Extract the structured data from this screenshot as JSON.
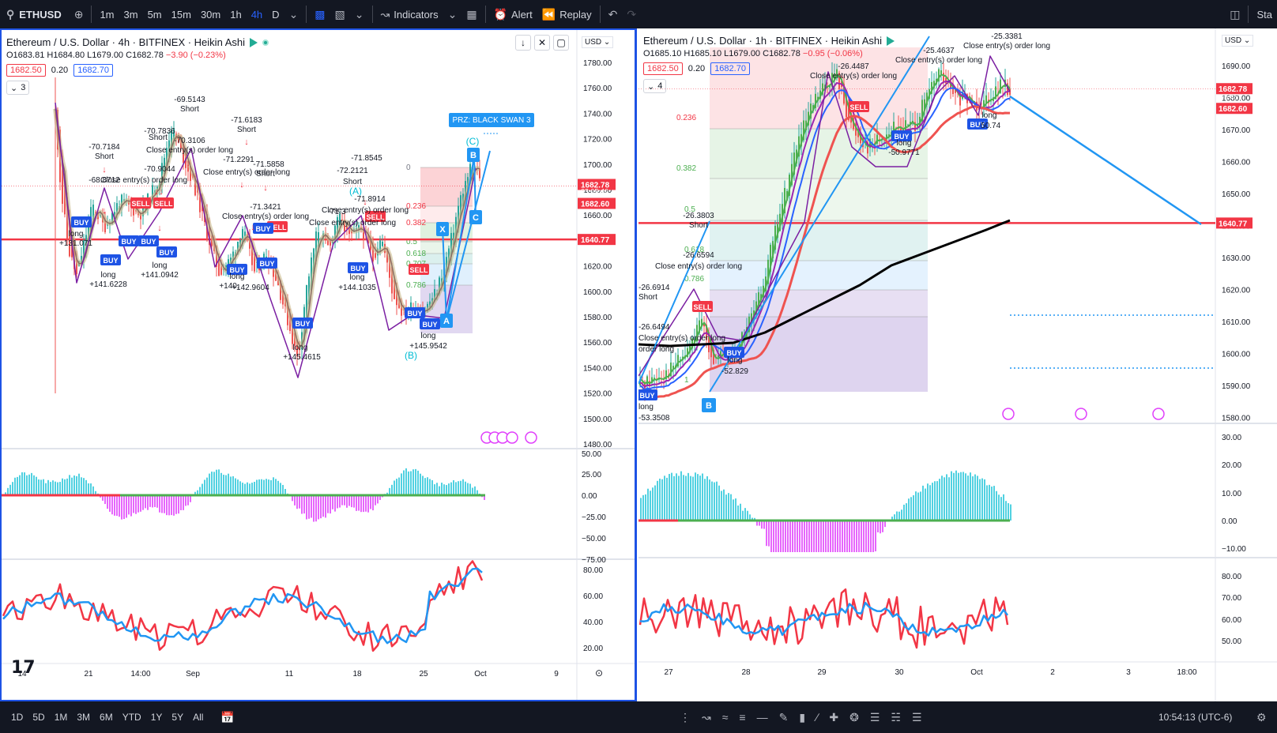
{
  "toolbar": {
    "symbol": "ETHUSD",
    "timeframes": [
      "1m",
      "3m",
      "5m",
      "15m",
      "30m",
      "1h",
      "4h",
      "D"
    ],
    "active_timeframe": "4h",
    "indicators_label": "Indicators",
    "alert_label": "Alert",
    "replay_label": "Replay",
    "right_label": "Sta"
  },
  "left": {
    "title": "Ethereum / U.S. Dollar · 4h · BITFINEX · Heikin Ashi",
    "ohlc": {
      "o": "O1683.81",
      "h": "H1684.80",
      "l": "L1679.00",
      "c": "C1682.78",
      "chg": "−3.90 (−0.23%)"
    },
    "bid": "1682.50",
    "spread": "0.20",
    "ask": "1682.70",
    "collapse_count": "3",
    "currency": "USD",
    "price_ticks": [
      "1780.00",
      "1760.00",
      "1740.00",
      "1720.00",
      "1700.00",
      "1680.00",
      "1660.00",
      "1640.00",
      "1620.00",
      "1600.00",
      "1580.00",
      "1560.00",
      "1540.00",
      "1520.00",
      "1500.00",
      "1480.00"
    ],
    "price_label_current": "1682.78",
    "price_label_countdown": "03:05:46",
    "price_label_sub": "1682.60",
    "price_label_hline": "1640.77",
    "osc1_ticks": [
      "50.00",
      "25.00",
      "0.00",
      "−25.00",
      "−50.00",
      "−75.00"
    ],
    "osc2_ticks": [
      "80.00",
      "60.00",
      "40.00",
      "20.00"
    ],
    "time_ticks": [
      "14",
      "21",
      "14:00",
      "Sep",
      "11",
      "18",
      "25",
      "Oct",
      "9"
    ],
    "prz_label": "PRZ: BLACK SWAN 3",
    "wave_labels": [
      "(A)",
      "(B)",
      "(C)"
    ],
    "pattern_points": [
      "X",
      "A",
      "B",
      "C"
    ],
    "fib_labels": [
      "0",
      "0.236",
      "0.382",
      "0.5",
      "0.618",
      "0.707",
      "0.786"
    ],
    "annotations": [
      "-69.5143",
      "Short",
      "-70.7836",
      "Short",
      "-70.3106",
      "Close entry(s) order long",
      "-70.7184",
      "Short",
      "-70.9044",
      "-68.8712",
      "Close entry(s) order long",
      "-71.6183",
      "Short",
      "-71.2291",
      "-71.5858",
      "Close entry(s) order long",
      "Short",
      "-71.3421",
      "Close entry(s) order long",
      "-71.8545",
      "-72.2121",
      "Short",
      "-71.8914",
      "Close entry(s) order long",
      "-71.3",
      "Close entry(s) order long",
      "long",
      "+131.071",
      "long",
      "+141.6228",
      "long",
      "+141.0942",
      "long",
      "+140.",
      "+142.9604",
      "long",
      "+145.4615",
      "long",
      "+144.1035",
      "long",
      "+145.9542"
    ],
    "signals": [
      "BUY",
      "SELL",
      "BUY",
      "BUY",
      "BUY",
      "SELL",
      "BUY",
      "BUY",
      "SELL",
      "BUY",
      "BUY",
      "SELL",
      "BUY",
      "BUY",
      "BUY",
      "SELL",
      "BUY"
    ]
  },
  "right": {
    "title": "Ethereum / U.S. Dollar · 1h · BITFINEX · Heikin Ashi",
    "ohlc": {
      "o": "O1685.10",
      "h": "H1685.10",
      "l": "L1679.00",
      "c": "C1682.78",
      "chg": "−0.95 (−0.06%)"
    },
    "bid": "1682.50",
    "spread": "0.20",
    "ask": "1682.70",
    "collapse_count": "4",
    "currency": "USD",
    "price_ticks": [
      "1690.00",
      "1680.00",
      "1670.00",
      "1660.00",
      "1650.00",
      "1640.00",
      "1630.00",
      "1620.00",
      "1610.00",
      "1600.00",
      "1590.00",
      "1580.00"
    ],
    "price_label_current": "1682.78",
    "price_label_countdown": "05:46",
    "price_label_sub": "1682.60",
    "price_label_hline": "1640.77",
    "osc1_ticks": [
      "30.00",
      "20.00",
      "10.00",
      "0.00",
      "−10.00"
    ],
    "osc2_ticks": [
      "80.00",
      "70.00",
      "60.00",
      "50.00"
    ],
    "time_ticks": [
      "27",
      "28",
      "29",
      "30",
      "Oct",
      "2",
      "3",
      "18:00"
    ],
    "fib_labels": [
      "0.236",
      "0.382",
      "0.5",
      "0.618",
      "0.786",
      "1"
    ],
    "pattern_points": [
      "B"
    ],
    "annotations": [
      "-25.3381",
      "Close entry(s) order long",
      "-25.4637",
      "Close entry(s) order long",
      "-26.4487",
      "Close entry(s) order long",
      "-26.3803",
      "Short",
      "-26.6594",
      "Close entry(s) order long",
      "-26.6914",
      "Short",
      "-26.6494",
      "Close entry(s) order long",
      "order long",
      "long",
      "-50.9771",
      "long",
      "-52.829",
      "long",
      "-50.74",
      "long",
      "-53.3508"
    ],
    "signals": [
      "SELL",
      "BUY",
      "BUY",
      "SELL",
      "BUY",
      "BUY"
    ]
  },
  "bottom": {
    "ranges": [
      "1D",
      "5D",
      "1M",
      "3M",
      "6M",
      "YTD",
      "1Y",
      "5Y",
      "All"
    ],
    "time": "10:54:13 (UTC-6)"
  },
  "colors": {
    "hline": "#f23645",
    "pattern": "#7b1fa2",
    "fib_line": "#2196f3",
    "osc_pos": "#26c6da",
    "osc_neg": "#e040fb",
    "rsi_red": "#f23645",
    "rsi_blue": "#2196f3"
  }
}
